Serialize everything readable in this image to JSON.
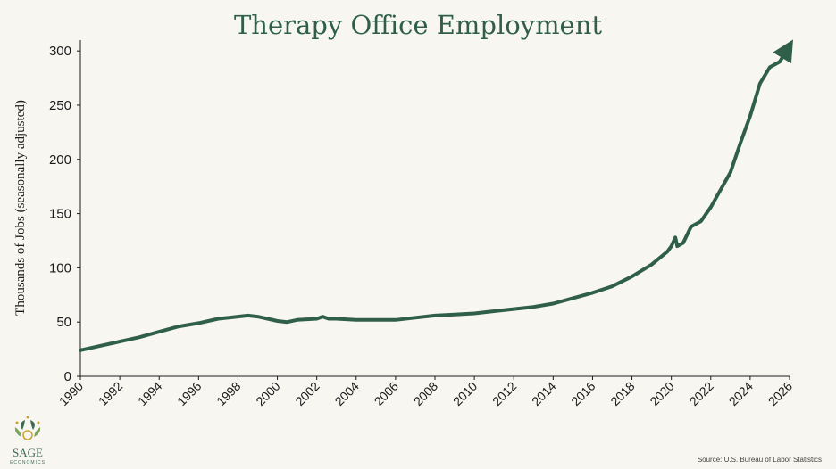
{
  "colors": {
    "line": "#2f5f4a",
    "title": "#2f5f4a",
    "axis": "#1a1a1a",
    "logo_green": "#3f6b55",
    "logo_gold": "#c9a227"
  },
  "logo": {
    "name": "SAGE",
    "tagline": "ECONOMICS",
    "icon": "sage-leaf-icon"
  },
  "source": "Source: U.S. Bureau of Labor Statistics",
  "chart_data": {
    "type": "line",
    "title": "Therapy Office Employment",
    "xlabel": "",
    "ylabel": "Thousands of Jobs (seasonally adjusted)",
    "xlim": [
      1990,
      2026
    ],
    "ylim": [
      0,
      310
    ],
    "x_ticks": [
      "1990",
      "1992",
      "1994",
      "1996",
      "1998",
      "2000",
      "2002",
      "2004",
      "2006",
      "2008",
      "2010",
      "2012",
      "2014",
      "2016",
      "2018",
      "2020",
      "2022",
      "2024",
      "2026"
    ],
    "y_ticks": [
      "0",
      "50",
      "100",
      "150",
      "200",
      "250",
      "300"
    ],
    "series": [
      {
        "name": "Therapy Office Employment",
        "x": [
          1990,
          1991,
          1992,
          1993,
          1994,
          1995,
          1996,
          1997,
          1998,
          1998.5,
          1999,
          1999.5,
          2000,
          2000.5,
          2001,
          2002,
          2002.3,
          2002.6,
          2003,
          2004,
          2005,
          2006,
          2007,
          2008,
          2009,
          2010,
          2011,
          2012,
          2013,
          2014,
          2015,
          2016,
          2017,
          2018,
          2019,
          2019.8,
          2020.0,
          2020.2,
          2020.3,
          2020.6,
          2021,
          2021.5,
          2022,
          2022.5,
          2023,
          2023.5,
          2024,
          2024.5,
          2025,
          2025.5,
          2025.9
        ],
        "values": [
          24,
          28,
          32,
          36,
          41,
          46,
          49,
          53,
          55,
          56,
          55,
          53,
          51,
          50,
          52,
          53,
          55,
          53,
          53,
          52,
          52,
          52,
          54,
          56,
          57,
          58,
          60,
          62,
          64,
          67,
          72,
          77,
          83,
          92,
          103,
          115,
          120,
          128,
          120,
          123,
          138,
          143,
          156,
          172,
          188,
          215,
          240,
          270,
          285,
          290,
          302
        ]
      }
    ]
  }
}
